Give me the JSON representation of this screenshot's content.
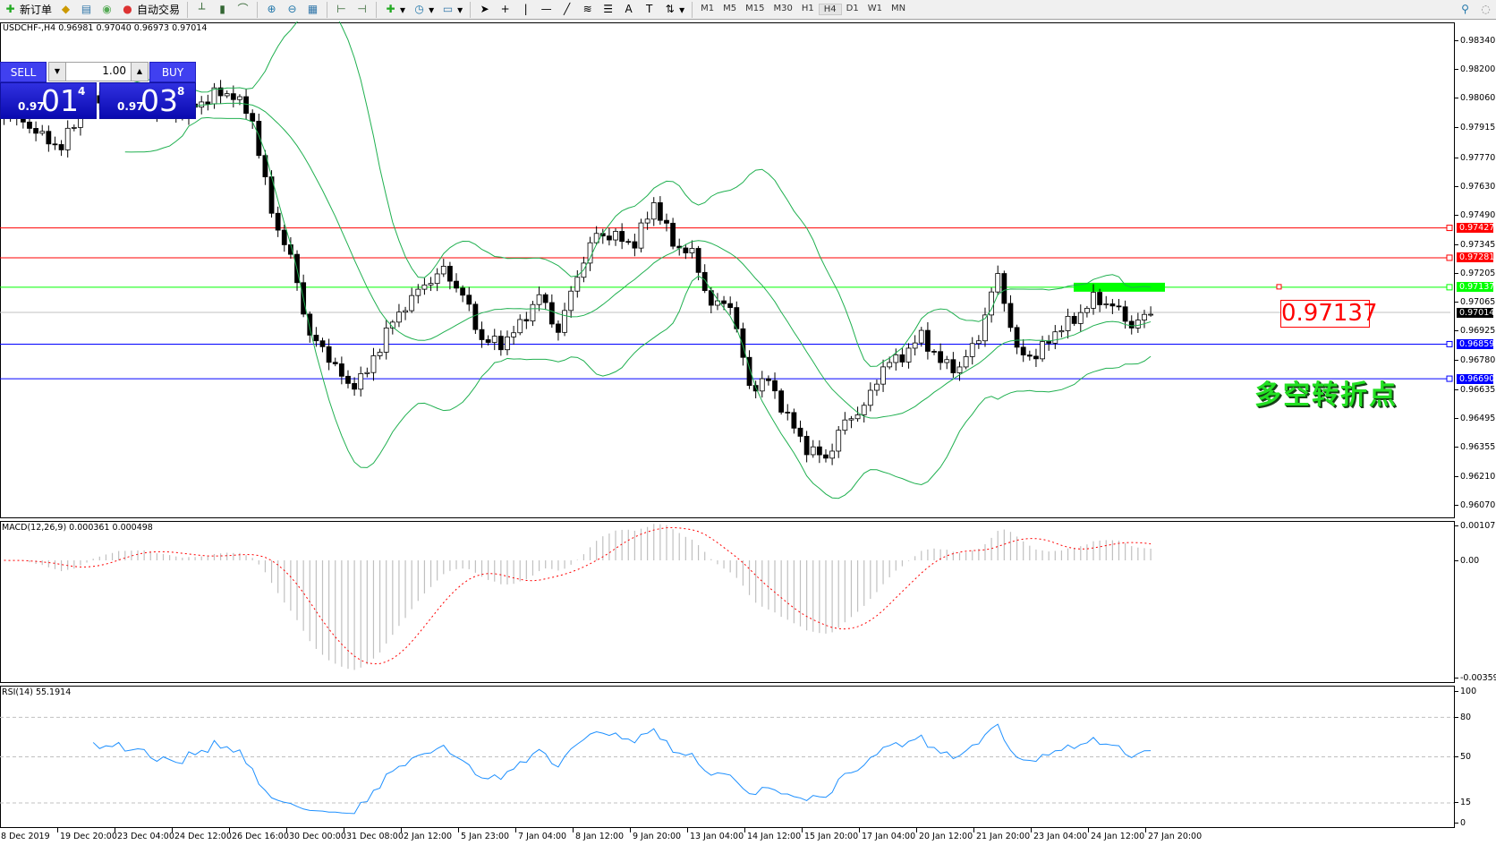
{
  "toolbar": {
    "new_order": "新订单",
    "auto_trading": "自动交易",
    "icons": [
      "new-order-icon",
      "navigator-icon",
      "terminal-icon",
      "market-watch-icon",
      "auto-trading-icon",
      "bar-chart-icon",
      "candlestick-icon",
      "line-chart-icon",
      "zoom-in-icon",
      "zoom-out-icon",
      "tile-windows-icon",
      "chart-shift-icon",
      "autoscroll-icon",
      "indicators-icon",
      "periods-icon",
      "templates-icon",
      "cursor-icon",
      "crosshair-icon",
      "vertical-line-icon",
      "horizontal-line-icon",
      "trendline-icon",
      "fibonacci-icon",
      "channel-icon",
      "text-icon",
      "text-label-icon",
      "arrows-icon",
      "search-icon",
      "community-icon"
    ],
    "timeframes": [
      "M1",
      "M5",
      "M15",
      "M30",
      "H1",
      "H4",
      "D1",
      "W1",
      "MN"
    ],
    "active_timeframe": "H4"
  },
  "chart": {
    "header": "USDCHF-,H4  0.96981 0.97040 0.96973 0.97014",
    "symbol": "USDCHF-",
    "timeframe": "H4",
    "trade_panel": {
      "sell_label": "SELL",
      "buy_label": "BUY",
      "lot": "1.00",
      "sell": {
        "prefix": "0.97",
        "big": "01",
        "suffix": "4"
      },
      "buy": {
        "prefix": "0.97",
        "big": "03",
        "suffix": "8"
      }
    },
    "price_ticks": [
      "0.98340",
      "0.98200",
      "0.98060",
      "0.97915",
      "0.97770",
      "0.97630",
      "0.97490",
      "0.97345",
      "0.97205",
      "0.97065",
      "0.96925",
      "0.96780",
      "0.96635",
      "0.96495",
      "0.96355",
      "0.96210",
      "0.96070"
    ],
    "levels": [
      {
        "price": "0.97427",
        "color": "#ff0000"
      },
      {
        "price": "0.97281",
        "color": "#ff0000"
      },
      {
        "price": "0.97137",
        "color": "#00ff00"
      },
      {
        "price": "0.97014",
        "color": "#000000",
        "line": "#c0c0c0"
      },
      {
        "price": "0.96859",
        "color": "#0000ff"
      },
      {
        "price": "0.96690",
        "color": "#0000ff"
      }
    ],
    "annotation_price": "0.97137",
    "annotation_text": "多空转折点",
    "close_samples": [
      0.9797,
      0.9795,
      0.9787,
      0.9782,
      0.98,
      0.9806,
      0.9806,
      0.9805,
      0.98,
      0.9798,
      0.9802,
      0.9808,
      0.9808,
      0.9795,
      0.975,
      0.9728,
      0.969,
      0.968,
      0.9665,
      0.9672,
      0.9692,
      0.9705,
      0.9715,
      0.9722,
      0.971,
      0.9688,
      0.9686,
      0.9695,
      0.971,
      0.9692,
      0.972,
      0.974,
      0.9738,
      0.9735,
      0.9755,
      0.9735,
      0.973,
      0.9705,
      0.9706,
      0.9665,
      0.9668,
      0.965,
      0.9635,
      0.963,
      0.9648,
      0.9655,
      0.9675,
      0.968,
      0.969,
      0.9677,
      0.9674,
      0.969,
      0.972,
      0.9682,
      0.968,
      0.9692,
      0.9698,
      0.9708,
      0.9705,
      0.9695,
      0.9701
    ],
    "colors": {
      "bands": "#20b050",
      "macd_hist": "#c0c0c0",
      "macd_signal": "#ff0000",
      "rsi": "#1e90ff"
    }
  },
  "macd": {
    "label": "MACD(12,26,9) 0.000361 0.000498",
    "ticks": [
      "0.00107",
      "0.00",
      "-0.003595"
    ]
  },
  "rsi": {
    "label": "RSI(14) 55.1914",
    "ticks": [
      "100",
      "80",
      "50",
      "15",
      "0"
    ]
  },
  "time_axis": [
    "8 Dec 2019",
    "19 Dec 20:00",
    "23 Dec 04:00",
    "24 Dec 12:00",
    "26 Dec 16:00",
    "30 Dec 00:00",
    "31 Dec 08:00",
    "2 Jan 12:00",
    "5 Jan 23:00",
    "7 Jan 04:00",
    "8 Jan 12:00",
    "9 Jan 20:00",
    "13 Jan 04:00",
    "14 Jan 12:00",
    "15 Jan 20:00",
    "17 Jan 04:00",
    "20 Jan 12:00",
    "21 Jan 20:00",
    "23 Jan 04:00",
    "24 Jan 12:00",
    "27 Jan 20:00"
  ]
}
